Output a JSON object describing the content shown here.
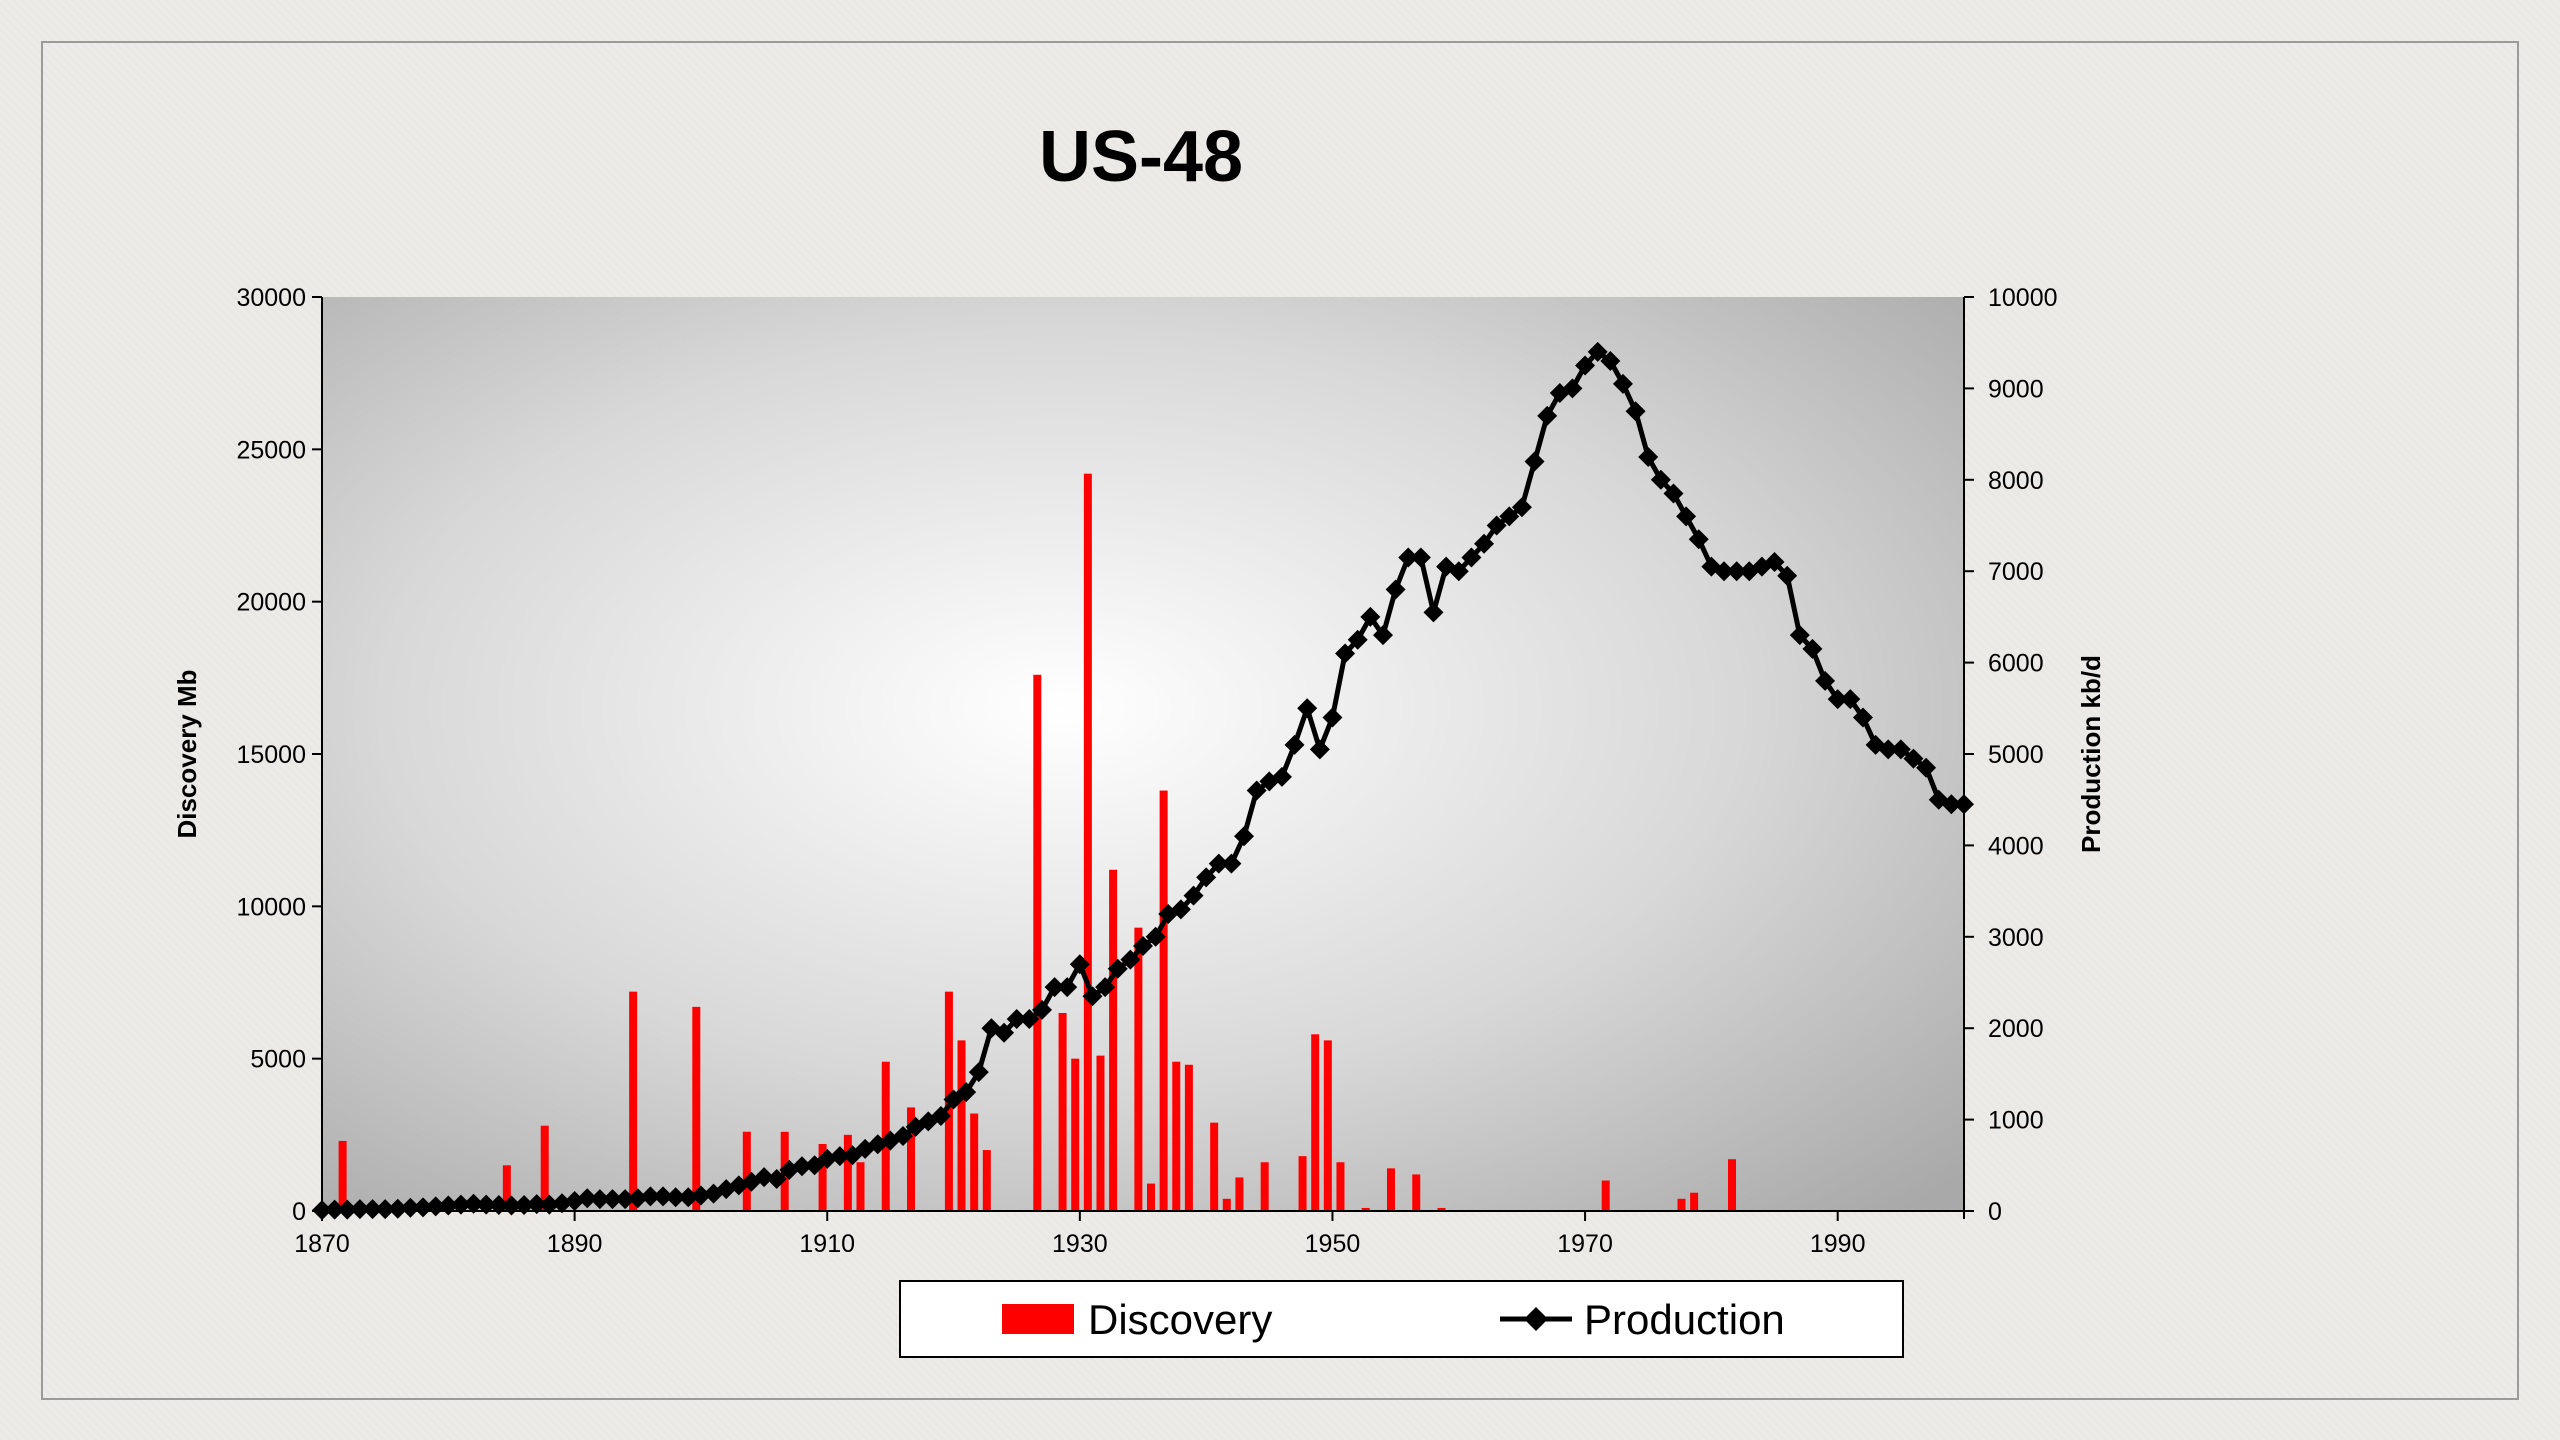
{
  "chart_data": {
    "type": "bar+line",
    "title": "US-48",
    "xlabel": "",
    "ylabel_left": "Discovery Mb",
    "ylabel_right": "Production kb/d",
    "xlim": [
      1870,
      2000
    ],
    "ylim_left": [
      0,
      30000
    ],
    "ylim_right": [
      0,
      10000
    ],
    "x_ticks": [
      "1870",
      "1890",
      "1910",
      "1930",
      "1950",
      "1970",
      "1990"
    ],
    "y_left_ticks": [
      "0",
      "5000",
      "10000",
      "15000",
      "20000",
      "25000",
      "30000"
    ],
    "y_right_ticks": [
      "0",
      "1000",
      "2000",
      "3000",
      "4000",
      "5000",
      "6000",
      "7000",
      "8000",
      "9000",
      "10000"
    ],
    "legend": {
      "position": "bottom",
      "entries": [
        "Discovery",
        "Production"
      ]
    },
    "colors": {
      "discovery": "#ff0000",
      "production": "#000000"
    },
    "series": [
      {
        "name": "Discovery",
        "axis": "left",
        "type": "bar",
        "points": [
          [
            1871,
            2300
          ],
          [
            1884,
            1500
          ],
          [
            1887,
            2800
          ],
          [
            1894,
            7200
          ],
          [
            1899,
            6700
          ],
          [
            1903,
            2600
          ],
          [
            1906,
            2600
          ],
          [
            1909,
            2200
          ],
          [
            1911,
            2500
          ],
          [
            1912,
            1600
          ],
          [
            1914,
            4900
          ],
          [
            1916,
            3400
          ],
          [
            1919,
            7200
          ],
          [
            1920,
            5600
          ],
          [
            1921,
            3200
          ],
          [
            1922,
            2000
          ],
          [
            1926,
            17600
          ],
          [
            1928,
            6500
          ],
          [
            1929,
            5000
          ],
          [
            1930,
            24200
          ],
          [
            1931,
            5100
          ],
          [
            1932,
            11200
          ],
          [
            1934,
            9300
          ],
          [
            1935,
            900
          ],
          [
            1936,
            13800
          ],
          [
            1937,
            4900
          ],
          [
            1938,
            4800
          ],
          [
            1940,
            2900
          ],
          [
            1941,
            400
          ],
          [
            1942,
            1100
          ],
          [
            1944,
            1600
          ],
          [
            1947,
            1800
          ],
          [
            1948,
            5800
          ],
          [
            1949,
            5600
          ],
          [
            1950,
            1600
          ],
          [
            1952,
            100
          ],
          [
            1954,
            1400
          ],
          [
            1956,
            1200
          ],
          [
            1958,
            100
          ],
          [
            1971,
            1000
          ],
          [
            1977,
            400
          ],
          [
            1978,
            600
          ],
          [
            1981,
            1700
          ]
        ]
      },
      {
        "name": "Production",
        "axis": "right",
        "type": "line",
        "marker": "diamond",
        "points": [
          [
            1870,
            10
          ],
          [
            1871,
            15
          ],
          [
            1872,
            15
          ],
          [
            1873,
            20
          ],
          [
            1874,
            20
          ],
          [
            1875,
            20
          ],
          [
            1876,
            25
          ],
          [
            1877,
            35
          ],
          [
            1878,
            40
          ],
          [
            1879,
            50
          ],
          [
            1880,
            60
          ],
          [
            1881,
            70
          ],
          [
            1882,
            80
          ],
          [
            1883,
            70
          ],
          [
            1884,
            65
          ],
          [
            1885,
            60
          ],
          [
            1886,
            65
          ],
          [
            1887,
            75
          ],
          [
            1888,
            70
          ],
          [
            1889,
            85
          ],
          [
            1890,
            110
          ],
          [
            1891,
            140
          ],
          [
            1892,
            130
          ],
          [
            1893,
            130
          ],
          [
            1894,
            130
          ],
          [
            1895,
            140
          ],
          [
            1896,
            160
          ],
          [
            1897,
            160
          ],
          [
            1898,
            150
          ],
          [
            1899,
            150
          ],
          [
            1900,
            170
          ],
          [
            1901,
            190
          ],
          [
            1902,
            240
          ],
          [
            1903,
            280
          ],
          [
            1904,
            320
          ],
          [
            1905,
            370
          ],
          [
            1906,
            350
          ],
          [
            1907,
            450
          ],
          [
            1908,
            490
          ],
          [
            1909,
            500
          ],
          [
            1910,
            570
          ],
          [
            1911,
            600
          ],
          [
            1912,
            610
          ],
          [
            1913,
            680
          ],
          [
            1914,
            730
          ],
          [
            1915,
            770
          ],
          [
            1916,
            820
          ],
          [
            1917,
            920
          ],
          [
            1918,
            980
          ],
          [
            1919,
            1040
          ],
          [
            1920,
            1220
          ],
          [
            1921,
            1300
          ],
          [
            1922,
            1520
          ],
          [
            1923,
            2000
          ],
          [
            1924,
            1950
          ],
          [
            1925,
            2100
          ],
          [
            1926,
            2100
          ],
          [
            1927,
            2200
          ],
          [
            1928,
            2450
          ],
          [
            1929,
            2450
          ],
          [
            1930,
            2700
          ],
          [
            1931,
            2350
          ],
          [
            1932,
            2450
          ],
          [
            1933,
            2650
          ],
          [
            1934,
            2750
          ],
          [
            1935,
            2900
          ],
          [
            1936,
            3000
          ],
          [
            1937,
            3250
          ],
          [
            1938,
            3300
          ],
          [
            1939,
            3450
          ],
          [
            1940,
            3650
          ],
          [
            1941,
            3800
          ],
          [
            1942,
            3800
          ],
          [
            1943,
            4100
          ],
          [
            1944,
            4600
          ],
          [
            1945,
            4700
          ],
          [
            1946,
            4750
          ],
          [
            1947,
            5100
          ],
          [
            1948,
            5500
          ],
          [
            1949,
            5050
          ],
          [
            1950,
            5400
          ],
          [
            1951,
            6100
          ],
          [
            1952,
            6250
          ],
          [
            1953,
            6500
          ],
          [
            1954,
            6300
          ],
          [
            1955,
            6800
          ],
          [
            1956,
            7150
          ],
          [
            1957,
            7150
          ],
          [
            1958,
            6550
          ],
          [
            1959,
            7050
          ],
          [
            1960,
            7000
          ],
          [
            1961,
            7150
          ],
          [
            1962,
            7300
          ],
          [
            1963,
            7500
          ],
          [
            1964,
            7600
          ],
          [
            1965,
            7700
          ],
          [
            1966,
            8200
          ],
          [
            1967,
            8700
          ],
          [
            1968,
            8950
          ],
          [
            1969,
            9000
          ],
          [
            1970,
            9250
          ],
          [
            1971,
            9400
          ],
          [
            1972,
            9300
          ],
          [
            1973,
            9050
          ],
          [
            1974,
            8750
          ],
          [
            1975,
            8250
          ],
          [
            1976,
            8000
          ],
          [
            1977,
            7850
          ],
          [
            1978,
            7600
          ],
          [
            1979,
            7350
          ],
          [
            1980,
            7050
          ],
          [
            1981,
            7000
          ],
          [
            1982,
            7000
          ],
          [
            1983,
            7000
          ],
          [
            1984,
            7050
          ],
          [
            1985,
            7100
          ],
          [
            1986,
            6950
          ],
          [
            1987,
            6300
          ],
          [
            1988,
            6150
          ],
          [
            1989,
            5800
          ],
          [
            1990,
            5600
          ],
          [
            1991,
            5600
          ],
          [
            1992,
            5400
          ],
          [
            1993,
            5100
          ],
          [
            1994,
            5050
          ],
          [
            1995,
            5050
          ],
          [
            1996,
            4950
          ],
          [
            1997,
            4850
          ],
          [
            1998,
            4500
          ],
          [
            1999,
            4450
          ],
          [
            2000,
            4450
          ]
        ]
      }
    ]
  }
}
